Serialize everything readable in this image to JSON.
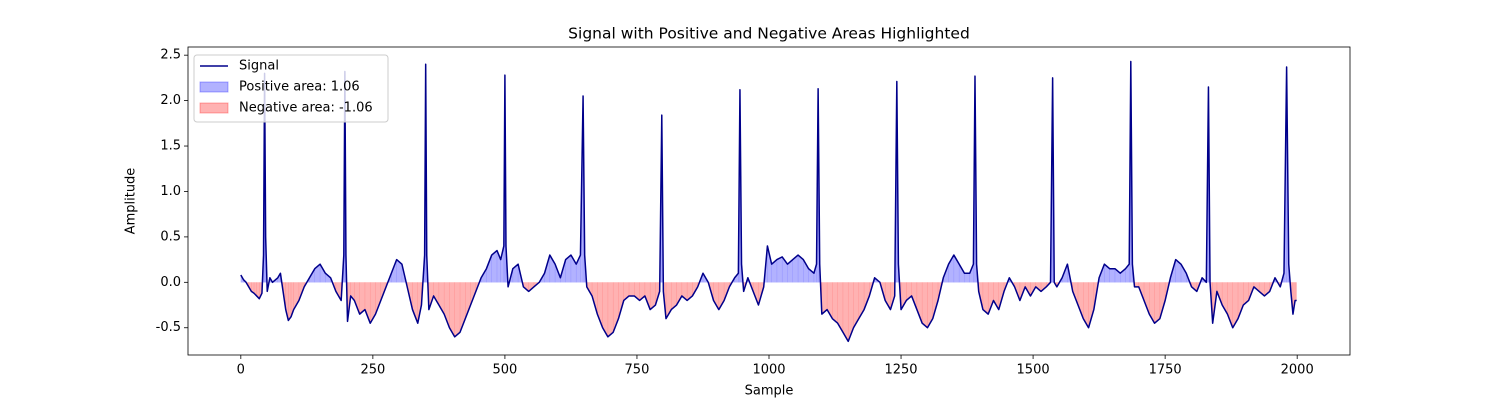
{
  "chart_data": {
    "type": "line",
    "title": "Signal with Positive and Negative Areas Highlighted",
    "x_label": "Sample",
    "y_label": "Amplitude",
    "x": [
      0,
      5,
      10,
      15,
      20,
      25,
      30,
      35,
      40,
      43,
      45,
      47,
      50,
      55,
      60,
      70,
      75,
      80,
      85,
      90,
      95,
      100,
      110,
      120,
      130,
      140,
      150,
      160,
      170,
      180,
      190,
      195,
      197,
      199,
      202,
      208,
      215,
      225,
      235,
      245,
      255,
      265,
      275,
      285,
      295,
      305,
      315,
      325,
      335,
      342,
      348,
      350,
      352,
      356,
      365,
      375,
      385,
      395,
      405,
      415,
      425,
      435,
      445,
      455,
      465,
      475,
      485,
      492,
      498,
      500,
      502,
      506,
      515,
      525,
      535,
      545,
      555,
      565,
      575,
      585,
      595,
      605,
      615,
      625,
      635,
      643,
      648,
      651,
      655,
      665,
      675,
      685,
      695,
      705,
      715,
      725,
      735,
      745,
      755,
      765,
      775,
      785,
      793,
      797,
      800,
      805,
      815,
      825,
      835,
      845,
      855,
      865,
      875,
      885,
      895,
      905,
      915,
      925,
      935,
      942,
      945,
      948,
      952,
      960,
      970,
      980,
      990,
      997,
      1005,
      1015,
      1025,
      1035,
      1045,
      1055,
      1065,
      1075,
      1085,
      1090,
      1093,
      1096,
      1100,
      1110,
      1120,
      1130,
      1140,
      1150,
      1160,
      1170,
      1180,
      1190,
      1200,
      1210,
      1220,
      1230,
      1238,
      1242,
      1245,
      1250,
      1260,
      1270,
      1280,
      1290,
      1300,
      1310,
      1320,
      1330,
      1340,
      1350,
      1360,
      1370,
      1380,
      1387,
      1390,
      1393,
      1397,
      1405,
      1415,
      1425,
      1435,
      1445,
      1455,
      1465,
      1475,
      1485,
      1495,
      1505,
      1515,
      1525,
      1533,
      1537,
      1540,
      1545,
      1555,
      1565,
      1575,
      1585,
      1595,
      1605,
      1615,
      1625,
      1635,
      1645,
      1655,
      1665,
      1675,
      1682,
      1685,
      1688,
      1692,
      1700,
      1710,
      1720,
      1730,
      1740,
      1750,
      1760,
      1770,
      1780,
      1790,
      1800,
      1810,
      1820,
      1828,
      1832,
      1835,
      1840,
      1848,
      1858,
      1868,
      1878,
      1888,
      1898,
      1908,
      1918,
      1928,
      1938,
      1948,
      1958,
      1968,
      1975,
      1980,
      1984,
      1988,
      1992,
      1996,
      1999
    ],
    "series": [
      {
        "name": "Signal",
        "color": "#00008b",
        "values": [
          0.08,
          0.03,
          0.0,
          -0.05,
          -0.1,
          -0.12,
          -0.15,
          -0.18,
          -0.12,
          0.3,
          2.3,
          0.5,
          -0.1,
          0.05,
          0.0,
          0.05,
          0.1,
          -0.1,
          -0.3,
          -0.42,
          -0.38,
          -0.3,
          -0.2,
          -0.05,
          0.05,
          0.15,
          0.2,
          0.1,
          0.05,
          -0.1,
          -0.2,
          0.3,
          2.32,
          0.3,
          -0.43,
          -0.15,
          -0.2,
          -0.35,
          -0.3,
          -0.45,
          -0.35,
          -0.2,
          -0.05,
          0.1,
          0.25,
          0.2,
          -0.05,
          -0.3,
          -0.45,
          -0.25,
          0.3,
          2.4,
          0.3,
          -0.3,
          -0.15,
          -0.25,
          -0.35,
          -0.5,
          -0.6,
          -0.55,
          -0.4,
          -0.25,
          -0.1,
          0.05,
          0.15,
          0.3,
          0.35,
          0.25,
          0.4,
          2.28,
          0.4,
          -0.05,
          0.15,
          0.2,
          -0.05,
          -0.1,
          -0.05,
          0.0,
          0.1,
          0.3,
          0.2,
          0.05,
          0.25,
          0.3,
          0.2,
          0.3,
          2.05,
          0.3,
          -0.05,
          -0.15,
          -0.35,
          -0.5,
          -0.6,
          -0.55,
          -0.4,
          -0.2,
          -0.15,
          -0.15,
          -0.2,
          -0.15,
          -0.3,
          -0.25,
          -0.1,
          1.84,
          -0.1,
          -0.4,
          -0.3,
          -0.25,
          -0.15,
          -0.2,
          -0.15,
          -0.05,
          0.1,
          0.0,
          -0.2,
          -0.3,
          -0.2,
          -0.05,
          0.05,
          0.1,
          2.12,
          0.2,
          -0.1,
          0.05,
          -0.1,
          -0.25,
          -0.05,
          0.4,
          0.2,
          0.25,
          0.28,
          0.2,
          0.25,
          0.3,
          0.25,
          0.15,
          0.1,
          0.2,
          2.13,
          0.2,
          -0.35,
          -0.3,
          -0.4,
          -0.45,
          -0.55,
          -0.65,
          -0.5,
          -0.4,
          -0.3,
          -0.15,
          0.05,
          0.0,
          -0.2,
          -0.3,
          -0.15,
          2.21,
          0.2,
          -0.3,
          -0.2,
          -0.15,
          -0.3,
          -0.45,
          -0.5,
          -0.4,
          -0.2,
          0.05,
          0.2,
          0.3,
          0.2,
          0.1,
          0.1,
          0.2,
          2.27,
          0.2,
          -0.1,
          -0.3,
          -0.35,
          -0.2,
          -0.3,
          -0.1,
          0.05,
          -0.05,
          -0.2,
          -0.05,
          -0.15,
          -0.05,
          -0.1,
          -0.05,
          0.0,
          2.25,
          0.0,
          -0.05,
          0.05,
          0.2,
          -0.1,
          -0.25,
          -0.4,
          -0.5,
          -0.3,
          0.05,
          0.2,
          0.15,
          0.15,
          0.1,
          0.15,
          0.2,
          2.43,
          0.2,
          -0.05,
          -0.05,
          -0.2,
          -0.35,
          -0.45,
          -0.4,
          -0.2,
          0.05,
          0.25,
          0.2,
          0.1,
          -0.05,
          -0.1,
          0.05,
          0.0,
          2.15,
          0.0,
          -0.45,
          -0.1,
          -0.25,
          -0.35,
          -0.5,
          -0.4,
          -0.25,
          -0.2,
          -0.05,
          -0.1,
          -0.15,
          -0.1,
          0.05,
          -0.05,
          0.1,
          2.37,
          0.2,
          -0.1,
          -0.35,
          -0.2,
          -0.2
        ]
      }
    ],
    "fills": [
      {
        "name": "Positive area: 1.06",
        "color": "#0000ff"
      },
      {
        "name": "Negative area: -1.06",
        "color": "#ff0000"
      }
    ],
    "fill_alpha": 0.3,
    "legend": "upper left",
    "xlim": [
      -100,
      2100
    ],
    "xticks": [
      0,
      250,
      500,
      750,
      1000,
      1250,
      1500,
      1750,
      2000
    ],
    "ylim": [
      -0.8,
      2.59
    ],
    "yticks": [
      -0.5,
      {
        "value": 0,
        "label": "0.0"
      },
      0.5,
      {
        "value": 1,
        "label": "1.0"
      },
      1.5,
      {
        "value": 2,
        "label": "2.0"
      },
      2.5
    ]
  }
}
